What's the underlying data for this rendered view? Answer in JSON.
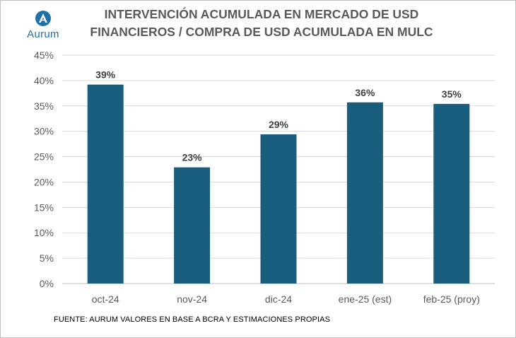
{
  "logo": {
    "text": "Aurum",
    "icon": "aurum-logo-icon",
    "color": "#1f6fa8"
  },
  "title_line1": "INTERVENCIÓN ACUMULADA EN MERCADO DE USD",
  "title_line2": "FINANCIEROS / COMPRA DE USD ACUMULADA EN MULC",
  "source": "FUENTE: AURUM VALORES EN BASE A BCRA Y ESTIMACIONES PROPIAS",
  "colors": {
    "bar": "#1a5e7e",
    "grid": "#d9d9d9",
    "axis_text": "#595959",
    "label_text": "#404040"
  },
  "chart_data": {
    "type": "bar",
    "title": "INTERVENCIÓN ACUMULADA EN MERCADO DE USD FINANCIEROS / COMPRA DE USD ACUMULADA EN MULC",
    "categories": [
      "oct-24",
      "nov-24",
      "dic-24",
      "ene-25 (est)",
      "feb-25 (proy)"
    ],
    "values": [
      39.2,
      22.9,
      29.4,
      35.7,
      35.4
    ],
    "data_labels": [
      "39%",
      "23%",
      "29%",
      "36%",
      "35%"
    ],
    "yticks": [
      "0%",
      "5%",
      "10%",
      "15%",
      "20%",
      "25%",
      "30%",
      "35%",
      "40%",
      "45%"
    ],
    "ylim": [
      0,
      45
    ],
    "xlabel": "",
    "ylabel": "",
    "grid": true,
    "legend": "none"
  }
}
